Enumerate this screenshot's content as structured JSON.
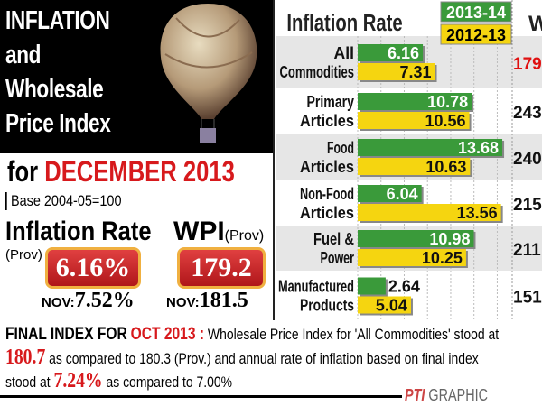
{
  "header": {
    "title_lines": [
      "INFLATION",
      "and",
      "Wholesale",
      "Price Index"
    ],
    "for_prefix": "for",
    "month": "DECEMBER 2013",
    "base": "Base 2004-05=100"
  },
  "summary": {
    "inflation_label": "Inflation Rate",
    "inflation_prov": "(Prov)",
    "inflation_value": "6.16%",
    "inflation_nov_label": "NOV:",
    "inflation_nov_value": "7.52%",
    "wpi_label": "WPI",
    "wpi_prov": "(Prov)",
    "wpi_value": "179.2",
    "wpi_nov_label": "NOV:",
    "wpi_nov_value": "181.5"
  },
  "chart_data": {
    "type": "bar",
    "title": "Inflation Rate",
    "wpi_header": "WPI",
    "categories": [
      "All Commodities",
      "Primary Articles",
      "Food Articles",
      "Non-Food Articles",
      "Fuel & Power",
      "Manufactured Products"
    ],
    "category_lines": [
      [
        "All",
        "Commodities"
      ],
      [
        "Primary",
        "Articles"
      ],
      [
        "Food",
        "Articles"
      ],
      [
        "Non-Food",
        "Articles"
      ],
      [
        "Fuel &",
        "Power"
      ],
      [
        "Manufactured",
        "Products"
      ]
    ],
    "series": [
      {
        "name": "2013-14",
        "color": "#3a9a3a",
        "values": [
          6.16,
          10.78,
          13.68,
          6.04,
          10.98,
          2.64
        ],
        "labels": [
          "6.16",
          "10.78",
          "13.68",
          "6.04",
          "10.98",
          "2.64"
        ]
      },
      {
        "name": "2012-13",
        "color": "#f5d510",
        "values": [
          7.31,
          10.56,
          10.63,
          13.56,
          10.25,
          5.04
        ],
        "labels": [
          "7.31",
          "10.56",
          "10.63",
          "13.56",
          "10.25",
          "5.04"
        ]
      }
    ],
    "wpi_values": [
      "179",
      "243.",
      "240",
      "215.",
      "211",
      "151."
    ],
    "xlim": [
      0,
      16
    ],
    "grid": true
  },
  "footer": {
    "label": "FINAL INDEX FOR",
    "month": "OCT 2013 :",
    "text1": "Wholesale Price Index for 'All Commodities' stood at",
    "value1": "180.7",
    "text2": "as compared to 180.3 (Prov.) and annual rate of inflation based on final index",
    "text3a": "stood at",
    "value2": "7.24%",
    "text3b": "as compared to 7.00%",
    "logo": "PTI",
    "credit": "GRAPHIC"
  }
}
